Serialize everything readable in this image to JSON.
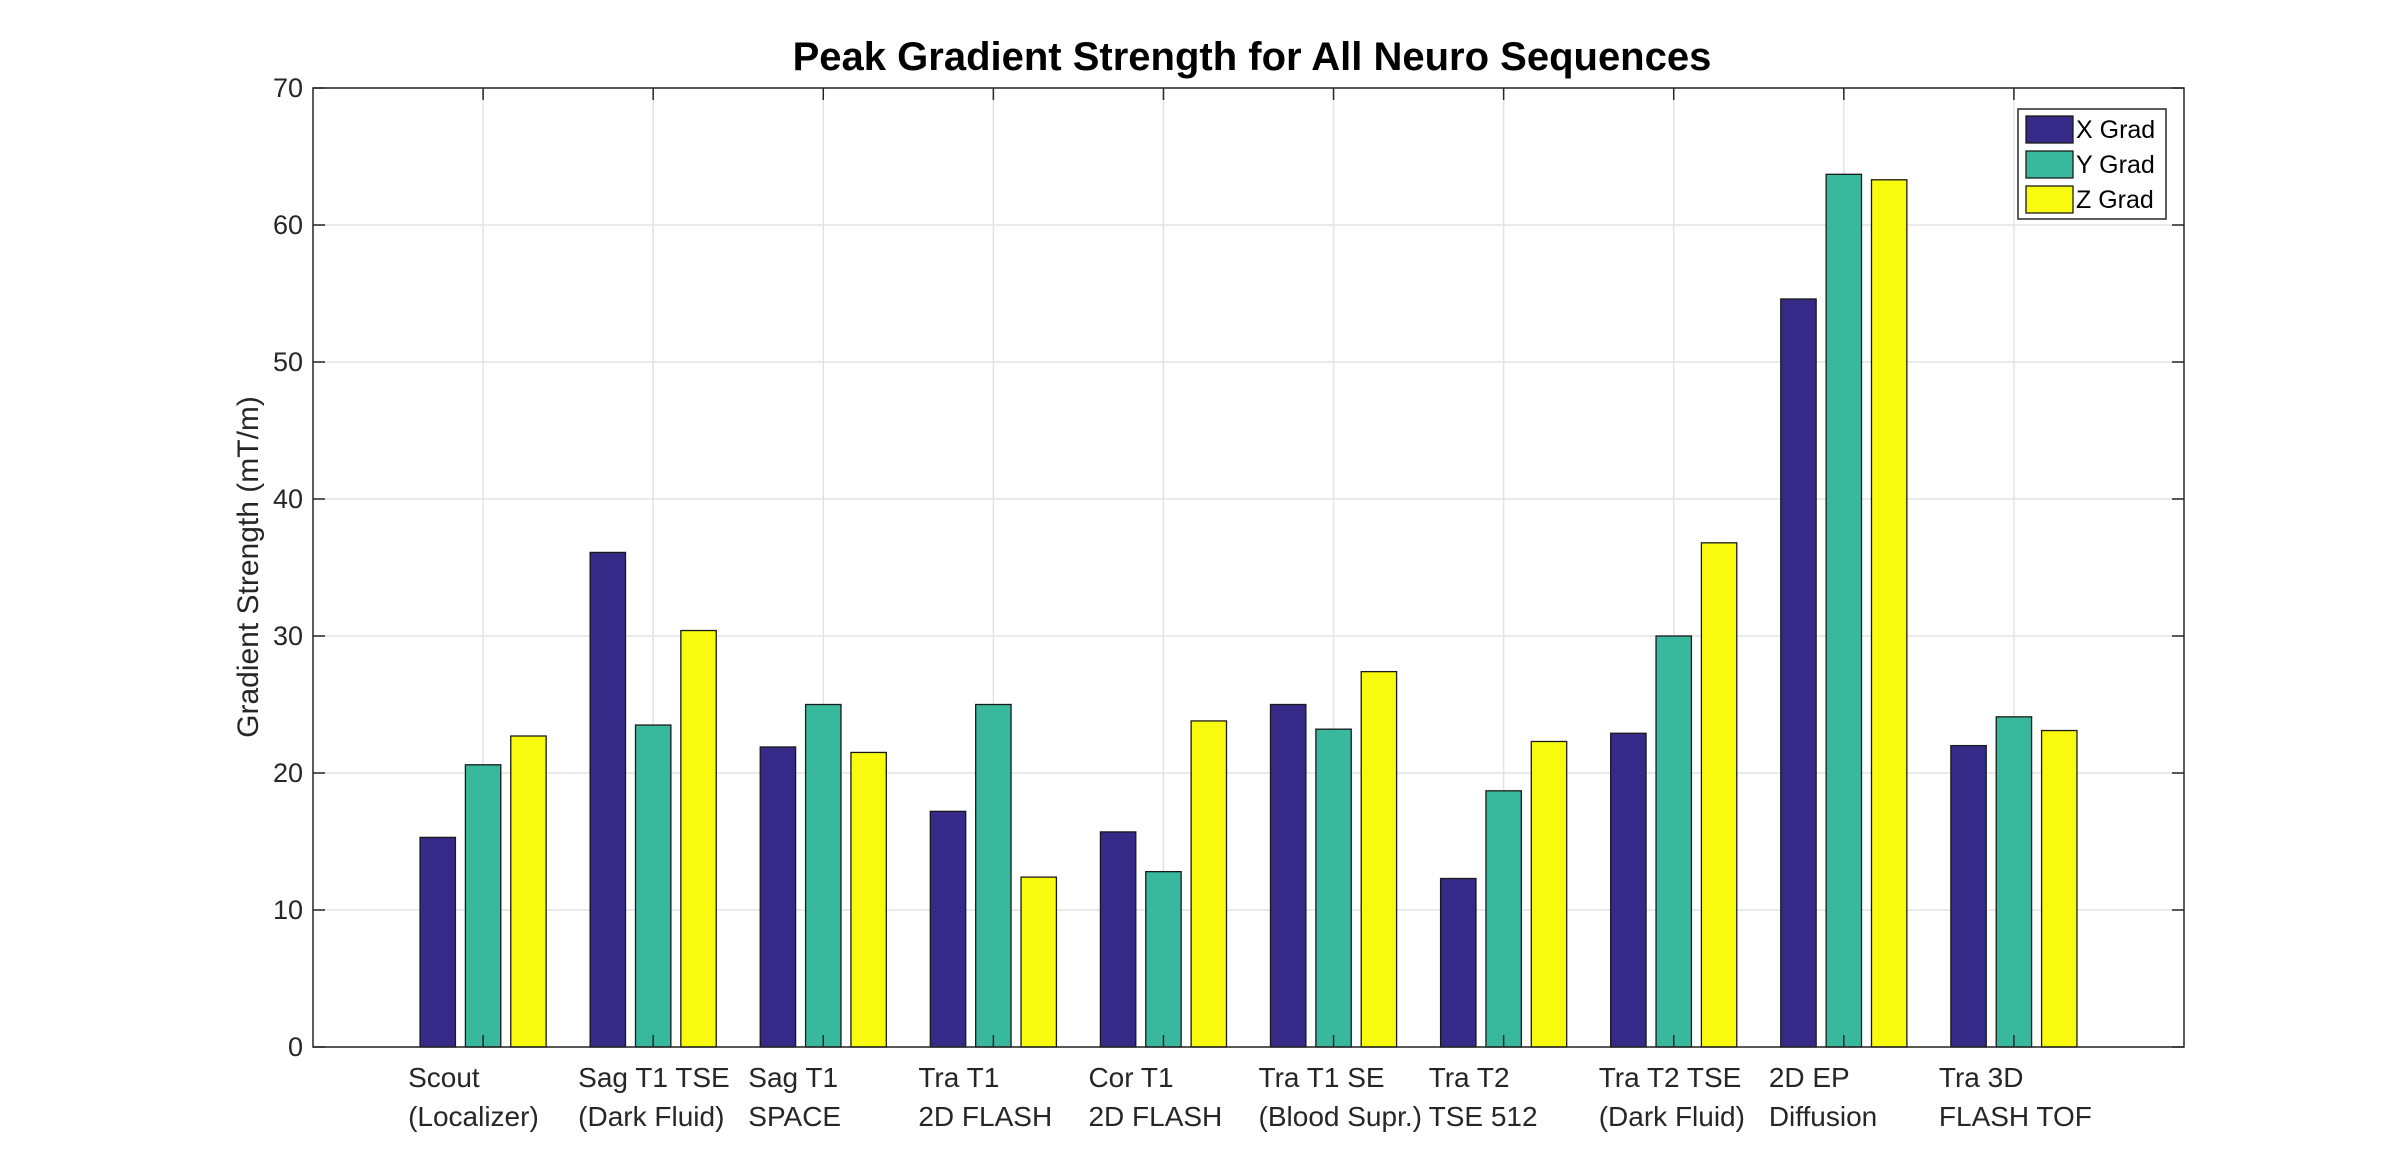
{
  "chart_data": {
    "type": "bar",
    "title": "Peak Gradient Strength for All Neuro Sequences",
    "xlabel": "",
    "ylabel": "Gradient Strength (mT/m)",
    "ylim": [
      0,
      70
    ],
    "yticks": [
      0,
      10,
      20,
      30,
      40,
      50,
      60,
      70
    ],
    "grid": true,
    "legend_position": "top-right",
    "categories": [
      [
        "Scout",
        "(Localizer)"
      ],
      [
        "Sag T1 TSE",
        "(Dark Fluid)"
      ],
      [
        "Sag T1",
        "SPACE"
      ],
      [
        "Tra T1",
        "2D FLASH"
      ],
      [
        "Cor T1",
        "2D FLASH"
      ],
      [
        "Tra T1 SE",
        "(Blood Supr.)"
      ],
      [
        "Tra T2",
        "TSE 512"
      ],
      [
        "Tra T2 TSE",
        "(Dark Fluid)"
      ],
      [
        "2D EP",
        "Diffusion"
      ],
      [
        "Tra 3D",
        "FLASH TOF"
      ]
    ],
    "series": [
      {
        "name": "X Grad",
        "color": "#352A87",
        "values": [
          15.3,
          36.1,
          21.9,
          17.2,
          15.7,
          25.0,
          12.3,
          22.9,
          54.6,
          22.0
        ]
      },
      {
        "name": "Y Grad",
        "color": "#38B99E",
        "values": [
          20.6,
          23.5,
          25.0,
          25.0,
          12.8,
          23.2,
          18.7,
          30.0,
          63.7,
          24.1
        ]
      },
      {
        "name": "Z Grad",
        "color": "#F9FB0E",
        "values": [
          22.7,
          30.4,
          21.5,
          12.4,
          23.8,
          27.4,
          22.3,
          36.8,
          63.3,
          23.1
        ]
      }
    ]
  }
}
